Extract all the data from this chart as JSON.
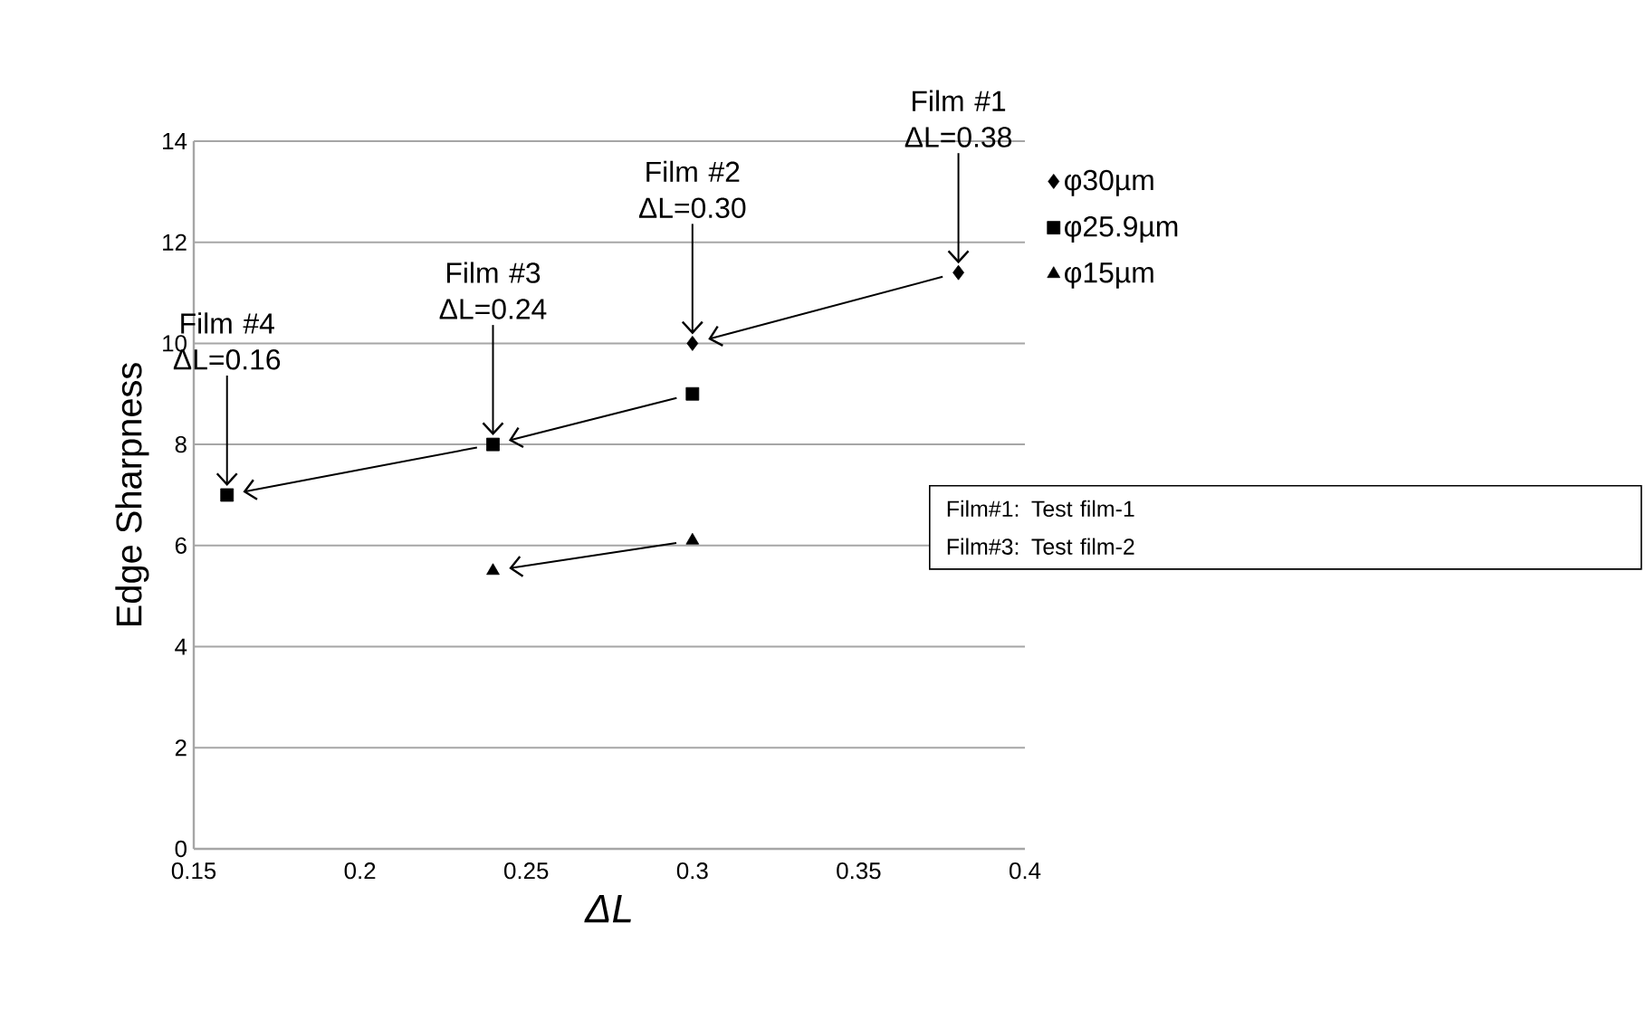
{
  "chart_data": {
    "type": "scatter",
    "xlabel": "ΔL",
    "ylabel": "Edge Sharpness",
    "xlim": [
      0.15,
      0.4
    ],
    "xticks": [
      0.15,
      0.2,
      0.25,
      0.3,
      0.35,
      0.4
    ],
    "ylim": [
      0,
      14
    ],
    "yticks": [
      0,
      2,
      4,
      6,
      8,
      10,
      12,
      14
    ],
    "grid": "y",
    "legend": "right",
    "series": [
      {
        "name": "φ30µm",
        "color": "#000000",
        "marker": "diamond",
        "x": [
          0.3,
          0.38
        ],
        "values": [
          10.0,
          11.4
        ]
      },
      {
        "name": "φ25.9µm",
        "color": "#000000",
        "marker": "square",
        "x": [
          0.16,
          0.24,
          0.3
        ],
        "values": [
          7.0,
          8.0,
          9.0
        ]
      },
      {
        "name": "φ15µm",
        "color": "#000000",
        "marker": "triangle",
        "x": [
          0.24,
          0.3
        ],
        "values": [
          5.5,
          6.1
        ]
      }
    ],
    "annotations": [
      {
        "text": "Film #1 ΔL=0.38",
        "x": 0.38,
        "y": 11.4
      },
      {
        "text": "Film #2 ΔL=0.30",
        "x": 0.3,
        "y": 10.0
      },
      {
        "text": "Film #3 ΔL=0.24",
        "x": 0.24,
        "y": 8.0
      },
      {
        "text": "Film #4 ΔL=0.16",
        "x": 0.16,
        "y": 7.0
      },
      "Film#1: Test film-1",
      "Film#3: Test film-2"
    ]
  }
}
